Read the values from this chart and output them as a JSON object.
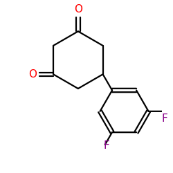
{
  "background_color": "#ffffff",
  "bond_color": "#000000",
  "oxygen_color": "#ff0000",
  "fluorine_color": "#880088",
  "oxygen_label": "O",
  "fluorine_label": "F",
  "label_fontsize": 11,
  "figsize": [
    2.5,
    2.5
  ],
  "dpi": 100
}
